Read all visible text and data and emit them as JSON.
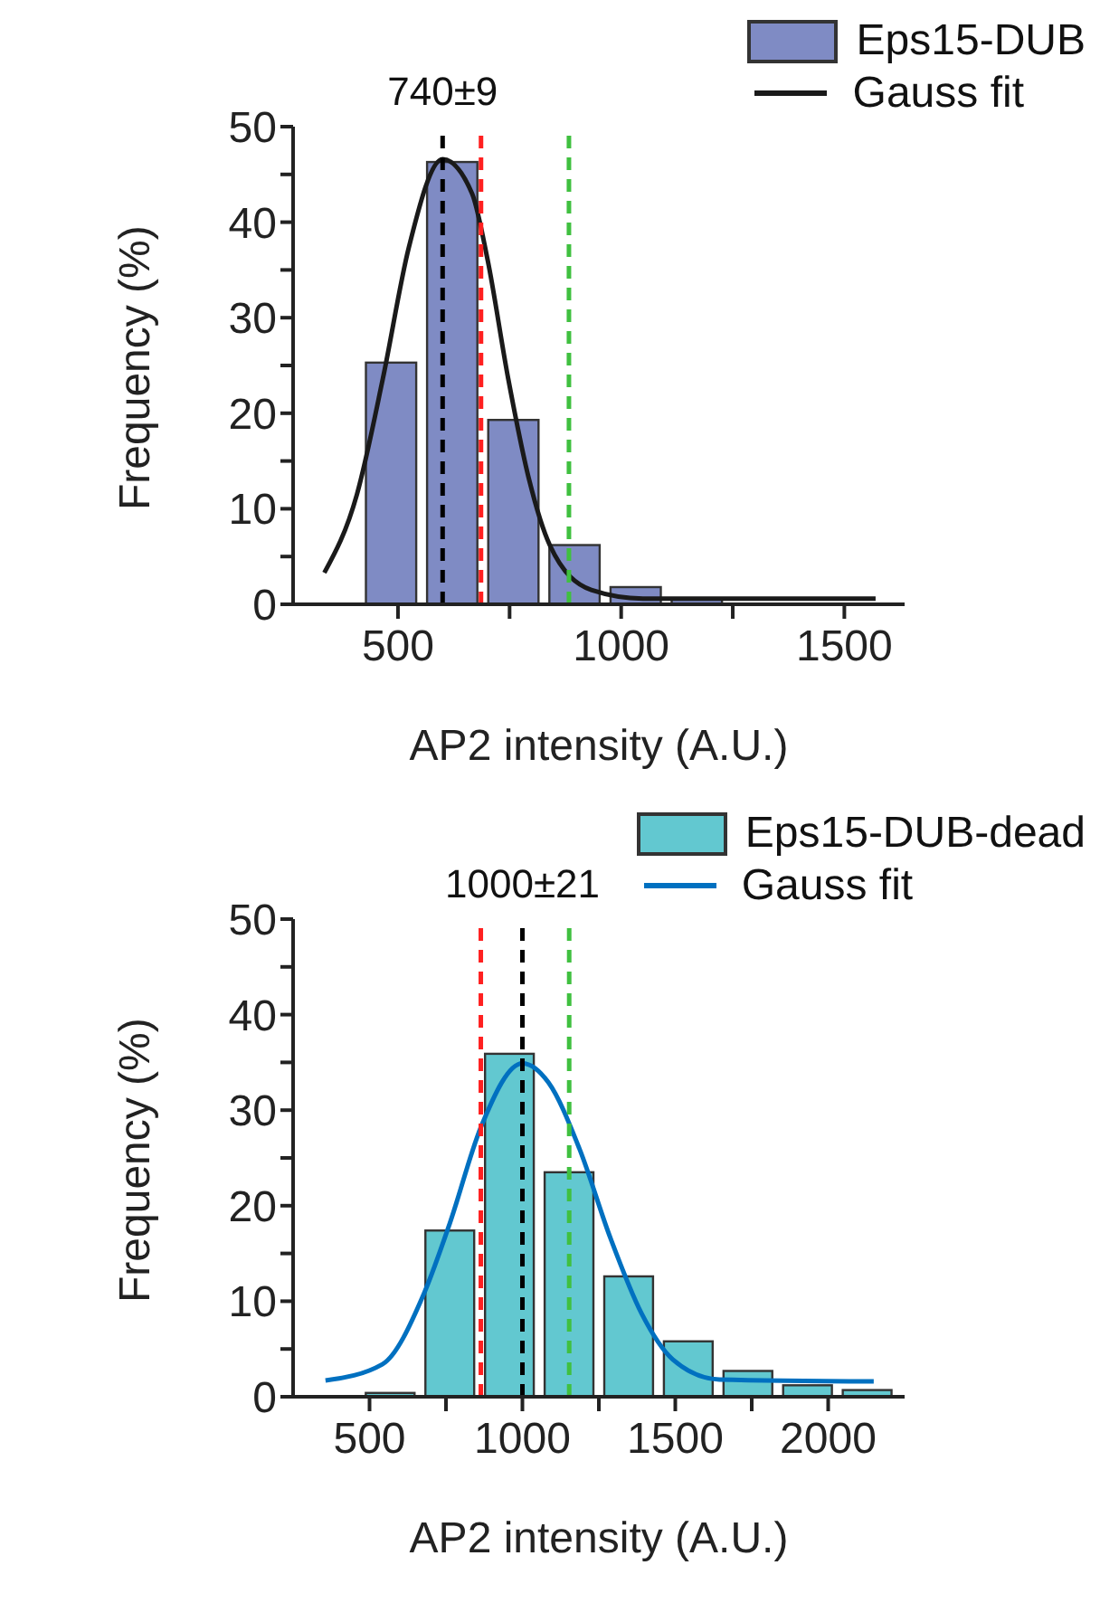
{
  "chart_data": [
    {
      "type": "histogram",
      "annotations": [
        "740±9"
      ],
      "xlabel": "AP2 intensity (A.U.)",
      "ylabel": "Frequency (%)",
      "xlim": [
        265,
        1635
      ],
      "xticks": [
        500,
        {
          "value": 750,
          "label": null
        },
        1000,
        {
          "value": 1250,
          "label": null
        },
        1500
      ],
      "ylim": [
        0,
        50
      ],
      "yticks": [
        0,
        {
          "value": 5,
          "label": null
        },
        10,
        {
          "value": 15,
          "label": null
        },
        20,
        {
          "value": 25,
          "label": null
        },
        30,
        {
          "value": 35,
          "label": null
        },
        40,
        {
          "value": 45,
          "label": null
        },
        50
      ],
      "grid": false,
      "legend": "top right",
      "series": [
        {
          "name": "Eps15-DUB",
          "color": "#7f8bc4",
          "bins": [
            416,
            553,
            690,
            827,
            964,
            1101,
            1238
          ],
          "values": [
            25.3,
            46.3,
            19.3,
            6.2,
            1.8,
            0.5
          ]
        },
        {
          "name": "Gauss fit",
          "type": "line",
          "color": "#1a1a1a",
          "marker": "none",
          "line_style": "solid",
          "x": [
            335,
            408,
            466,
            524,
            600,
            666,
            701,
            747,
            794,
            840,
            933,
            1049,
            1570
          ],
          "values": [
            3.3,
            11.5,
            23.6,
            37.3,
            46.6,
            43,
            36,
            23.6,
            13,
            6.2,
            1.5,
            0.6,
            0.6
          ]
        }
      ],
      "ref_lines": [
        {
          "axis": "x",
          "value": 600,
          "label": null,
          "color": "#000000",
          "line_style": "dashed"
        },
        {
          "axis": "x",
          "value": 686,
          "label": null,
          "color": "#ff2020",
          "line_style": "dashed"
        },
        {
          "axis": "x",
          "value": 883,
          "label": null,
          "color": "#40c040",
          "line_style": "dashed"
        }
      ]
    },
    {
      "type": "histogram",
      "annotations": [
        "1000±21"
      ],
      "xlabel": "AP2 intensity (A.U.)",
      "ylabel": "Frequency (%)",
      "xlim": [
        250,
        2250
      ],
      "xticks": [
        500,
        {
          "value": 750,
          "label": null
        },
        1000,
        {
          "value": 1250,
          "label": null
        },
        1500,
        {
          "value": 1750,
          "label": null
        },
        2000
      ],
      "ylim": [
        0,
        50
      ],
      "yticks": [
        0,
        {
          "value": 5,
          "label": null
        },
        10,
        {
          "value": 15,
          "label": null
        },
        20,
        {
          "value": 25,
          "label": null
        },
        30,
        {
          "value": 35,
          "label": null
        },
        40,
        {
          "value": 45,
          "label": null
        },
        50
      ],
      "grid": false,
      "legend": "top right",
      "series": [
        {
          "name": "Eps15-DUB-dead",
          "color": "#62c8d0",
          "bins": [
            470,
            665,
            860,
            1055,
            1250,
            1445,
            1640,
            1835,
            2030,
            2225
          ],
          "values": [
            0.4,
            17.4,
            35.9,
            23.5,
            12.6,
            5.8,
            2.7,
            1.2,
            0.7
          ]
        },
        {
          "name": "Gauss fit",
          "type": "line",
          "color": "#0070c0",
          "marker": "none",
          "line_style": "solid",
          "x": [
            356,
            542,
            678,
            763,
            864,
            1000,
            1085,
            1186,
            1288,
            1390,
            1492,
            1644,
            2149
          ],
          "values": [
            1.7,
            3.4,
            10.8,
            18.2,
            28.2,
            34.9,
            32.9,
            26,
            16.6,
            8.7,
            3.9,
            1.8,
            1.6
          ]
        }
      ],
      "ref_lines": [
        {
          "axis": "x",
          "value": 1000,
          "label": null,
          "color": "#000000",
          "line_style": "dashed"
        },
        {
          "axis": "x",
          "value": 864,
          "label": null,
          "color": "#ff2020",
          "line_style": "dashed"
        },
        {
          "axis": "x",
          "value": 1153,
          "label": null,
          "color": "#40c040",
          "line_style": "dashed"
        }
      ]
    }
  ]
}
